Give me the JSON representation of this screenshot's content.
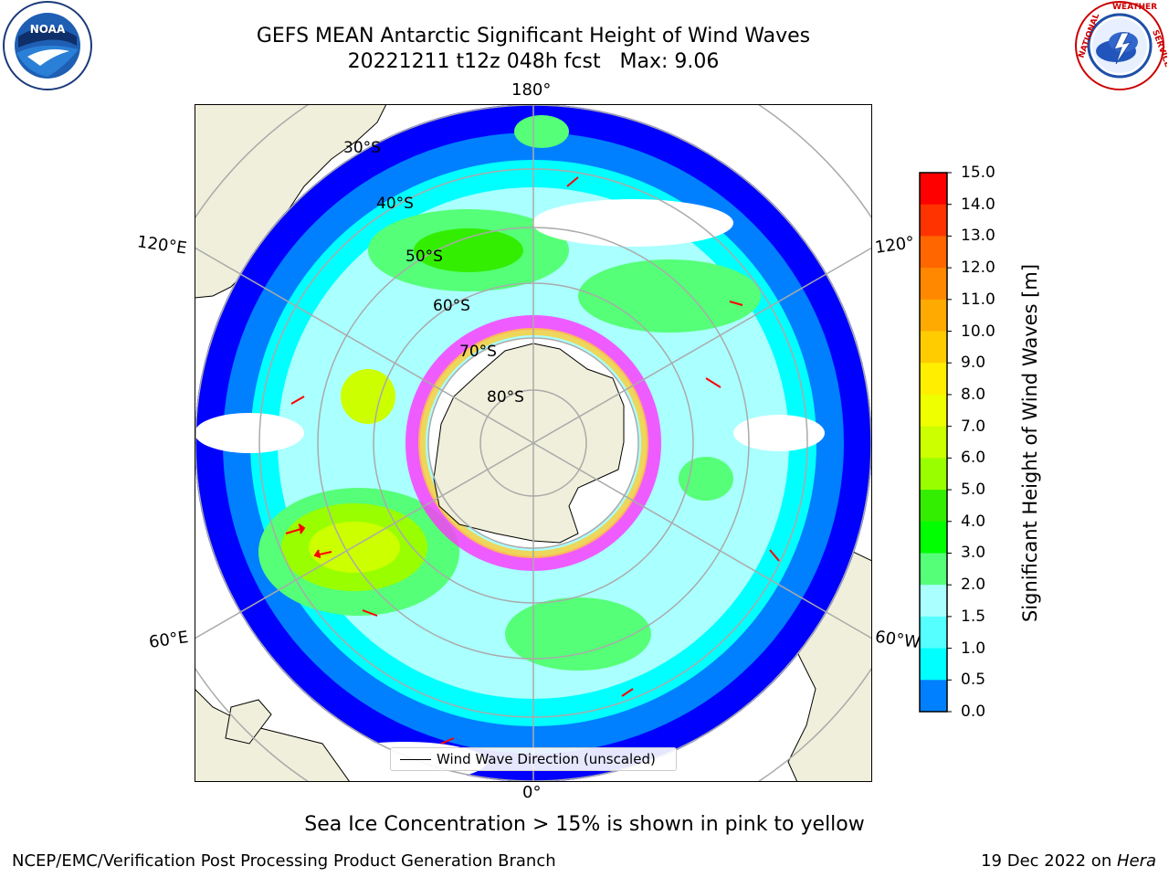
{
  "title": {
    "line1": "GEFS MEAN Antarctic Significant Height of Wind Waves",
    "line2": "20221211 t12z 048h fcst   Max: 9.06"
  },
  "logos": {
    "left": {
      "icon": "noaa-logo",
      "text": "NOAA"
    },
    "right": {
      "icon": "national-weather-service-logo",
      "ring_text": "NATIONAL WEATHER SERVICE"
    }
  },
  "map": {
    "projection": "south-polar-stereographic",
    "land_color": "#efefdb",
    "ice_colors": [
      "#ff33ff",
      "#ff66cc",
      "#ffcc33"
    ],
    "longitude_labels": {
      "top": "180°",
      "bottom": "0°",
      "upper_left": "120°E",
      "lower_left": "60°E",
      "upper_right": "120°",
      "lower_right": "60°W"
    },
    "latitude_labels": [
      "30°S",
      "40°S",
      "50°S",
      "60°S",
      "70°S",
      "80°S"
    ],
    "legend": {
      "line_label": "Wind Wave Direction (unscaled)"
    }
  },
  "colorbar": {
    "label": "Significant Height of Wind Waves [m]",
    "ticks": [
      "15.0",
      "14.0",
      "13.0",
      "12.0",
      "11.0",
      "10.0",
      "9.0",
      "8.0",
      "7.0",
      "6.0",
      "5.0",
      "4.0",
      "3.0",
      "2.0",
      "1.5",
      "1.0",
      "0.5",
      "0.0"
    ],
    "colors": [
      "#ff0000",
      "#ff3300",
      "#ff6600",
      "#ff8800",
      "#ffaa00",
      "#ffcc00",
      "#ffee00",
      "#f0ff00",
      "#ccff00",
      "#99ff00",
      "#33ee00",
      "#00ff00",
      "#55ff77",
      "#aaffff",
      "#55ffff",
      "#00ffff",
      "#0080ff",
      "#0000ff"
    ]
  },
  "note": "Sea Ice Concentration > 15% is shown in pink to yellow",
  "footer": {
    "left": "NCEP/EMC/Verification Post Processing Product Generation Branch",
    "right_date": "19 Dec 2022 on ",
    "right_host": "Hera"
  }
}
